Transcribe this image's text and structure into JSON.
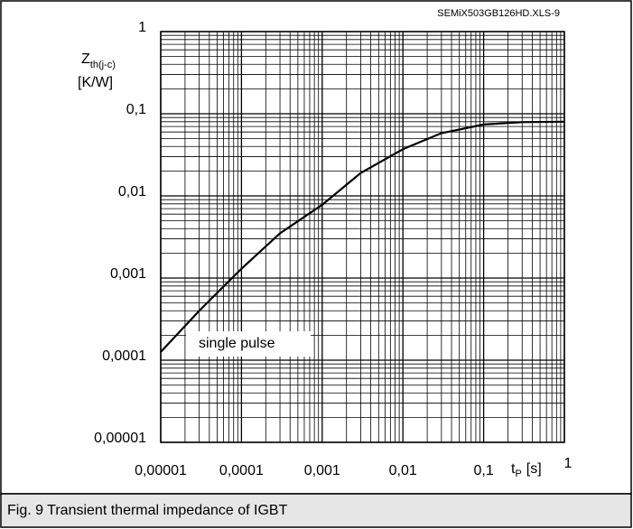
{
  "chart_data": {
    "type": "line",
    "file_id": "SEMiX503GB126HD.XLS-9",
    "y_label": {
      "text": "Z",
      "subscript": "th(j-c)"
    },
    "y_unit": "[K/W]",
    "x_label": {
      "text": "t",
      "subscript": "P",
      "suffix": "[s]"
    },
    "caption": "Fig. 9 Transient thermal impedance of IGBT",
    "annotation": "single pulse",
    "log_x": true,
    "log_y": true,
    "grid": true,
    "xlim": [
      1e-05,
      1
    ],
    "ylim": [
      1e-05,
      1
    ],
    "xticks": [
      {
        "value": 1e-05,
        "label": "0,00001"
      },
      {
        "value": 0.0001,
        "label": "0,0001"
      },
      {
        "value": 0.001,
        "label": "0,001"
      },
      {
        "value": 0.01,
        "label": "0,01"
      },
      {
        "value": 0.1,
        "label": "0,1"
      },
      1
    ],
    "yticks": [
      {
        "value": 1e-05,
        "label": "0,00001"
      },
      {
        "value": 0.0001,
        "label": "0,0001"
      },
      {
        "value": 0.001,
        "label": "0,001"
      },
      {
        "value": 0.01,
        "label": "0,01"
      },
      {
        "value": 0.1,
        "label": "0,1"
      },
      1
    ],
    "x": [
      1e-05,
      3e-05,
      0.0001,
      0.0003,
      0.001,
      0.003,
      0.01,
      0.03,
      0.1,
      0.3,
      1
    ],
    "series": [
      {
        "name": "single pulse",
        "color": "#000000",
        "values": [
          0.000126,
          0.0004,
          0.0013,
          0.0035,
          0.0078,
          0.019,
          0.037,
          0.058,
          0.074,
          0.079,
          0.08
        ]
      }
    ]
  }
}
